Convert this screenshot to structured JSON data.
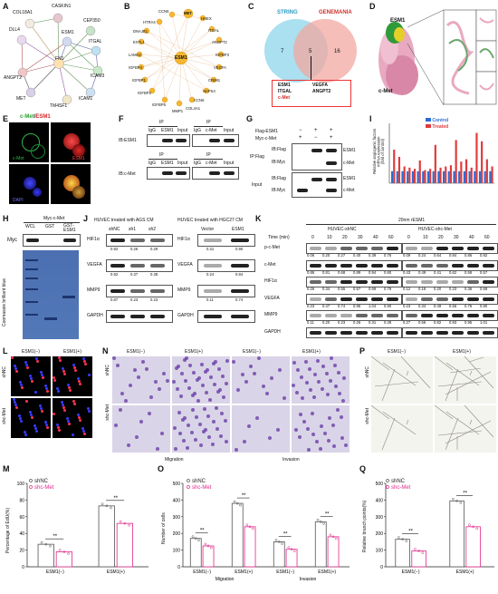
{
  "panels": {
    "A": {
      "label": "A",
      "nodes": [
        "CASKIN1",
        "COL18A1",
        "CEP350",
        "DLL4",
        "ESM1",
        "FN1",
        "ITGAL",
        "ANGPT2",
        "ICAM3",
        "MET",
        "TM4SF1",
        "ICAM1"
      ]
    },
    "B": {
      "label": "B",
      "center": "ESM1",
      "nodes": [
        "CCN5",
        "MET",
        "HHEX",
        "HTRA4",
        "ITGAL",
        "DNAJB1",
        "ANGPT2",
        "IGFBP3",
        "EXTL1",
        "LAMA4",
        "VEGFA",
        "IGFBP4",
        "CRIM1",
        "IGFBP1",
        "NAPSA",
        "IGFBP2",
        "CCN6",
        "IGFBP5",
        "COL4A1",
        "MMP1"
      ]
    },
    "C": {
      "label": "C",
      "left_title": "STRING",
      "right_title": "GENEMANIA",
      "left_count": "7",
      "overlap_count": "5",
      "right_count": "16",
      "box_left": [
        "ESM1",
        "ITGAL",
        "c-Met"
      ],
      "box_right": [
        "VEGFA",
        "ANGPT2"
      ]
    },
    "D": {
      "label": "D",
      "esm1": "ESM1",
      "cmet": "c-Met"
    },
    "E": {
      "label": "E",
      "title_a": "c-Met",
      "title_sep": "/",
      "title_b": "ESM1",
      "cmet": "c-Met",
      "esm1": "ESM1",
      "dapi": "DAPI"
    },
    "F": {
      "label": "F",
      "ip": "IP",
      "ip_esm1": [
        "IgG",
        "ESM1",
        "Input"
      ],
      "ip_cmet": [
        "IgG",
        "c-Met",
        "Input"
      ],
      "ib_esm1": "IB:ESM1",
      "ib_cmet": "IB:c-Met"
    },
    "G": {
      "label": "G",
      "flag": "Flag-ESM1",
      "myc": "Myc-c-Met",
      "flag_signs": [
        "−",
        "+",
        "+"
      ],
      "myc_signs": [
        "+",
        "−",
        "+"
      ],
      "ip_flag": "IP:Flag",
      "input": "Input",
      "ib_flag": "IB:Flag",
      "ib_myc": "IB:Myc",
      "bands": [
        "ESM1",
        "c-Met",
        "ESM1",
        "c-Met"
      ]
    },
    "H": {
      "label": "H",
      "header": "Myc-c-Met",
      "cols": [
        "WCL",
        "GST",
        "GST-\nESM1"
      ],
      "myc": "Myc",
      "stain": "Coomassie brilliant blue"
    },
    "I": {
      "label": "I",
      "ylabel": "Relative angiogenic factors\nmRNA expression\n(fold of control)",
      "legend": [
        "Control",
        "Treated"
      ],
      "colors": [
        "#2b6cd4",
        "#e03a3a"
      ]
    },
    "J": {
      "label": "J",
      "title_ags": "HUVEC treated with AGS CM",
      "title_hgc": "HUVEC treated with HGC27 CM",
      "ags_cols": [
        "shNC",
        "sh1",
        "sh2"
      ],
      "hgc_cols": [
        "Vector",
        "ESM1"
      ],
      "rows": [
        "HIF1α",
        "VEGFA",
        "MMP9",
        "GAPDH"
      ],
      "ags_vals": [
        [
          "0.92",
          "0.26",
          "0.29"
        ],
        [
          "0.92",
          "0.37",
          "0.38"
        ],
        [
          "0.87",
          "0.23",
          "0.23"
        ]
      ],
      "hgc_vals": [
        [
          "0.31",
          "0.90"
        ],
        [
          "0.24",
          "0.84"
        ],
        [
          "0.11",
          "0.74"
        ]
      ]
    },
    "K": {
      "label": "K",
      "top": "20nm rESM1",
      "group_a": "HUVEC-shNC",
      "group_b": "HUVEC-shc-Met",
      "time_label": "Time (min)",
      "times": [
        "0",
        "10",
        "20",
        "30",
        "40",
        "60"
      ],
      "rows": [
        "p-c-Met",
        "c-Met",
        "HIF1α",
        "VEGFA",
        "MMP9",
        "GAPDH"
      ],
      "vals_a": [
        [
          "0.06",
          "0.20",
          "0.27",
          "0.40",
          "0.39",
          "0.76"
        ],
        [
          "0.86",
          "0.81",
          "0.68",
          "0.89",
          "0.94",
          "0.80"
        ],
        [
          "0.26",
          "0.34",
          "0.55",
          "0.57",
          "0.69",
          "0.79"
        ],
        [
          "0.23",
          "0.47",
          "0.74",
          "0.95",
          "1.04",
          "0.90"
        ],
        [
          "0.11",
          "0.20",
          "0.23",
          "0.26",
          "0.31",
          "0.39"
        ]
      ],
      "vals_b": [
        [
          "0.09",
          "0.24",
          "0.64",
          "0.84",
          "0.86",
          "0.92"
        ],
        [
          "0.43",
          "0.49",
          "0.41",
          "0.62",
          "0.58",
          "0.57"
        ],
        [
          "0.12",
          "0.16",
          "0.20",
          "0.23",
          "0.36",
          "0.69"
        ],
        [
          "0.23",
          "0.34",
          "0.49",
          "0.56",
          "0.76",
          "0.80"
        ],
        [
          "0.27",
          "0.56",
          "0.82",
          "0.93",
          "0.95",
          "1.01"
        ]
      ]
    },
    "L": {
      "label": "L",
      "cols": [
        "ESM1(−)",
        "ESM1(+)"
      ],
      "rows": [
        "shNC",
        "shc-Met"
      ]
    },
    "N": {
      "label": "N",
      "cols": [
        "ESM1(−)",
        "ESM1(+)",
        "ESM1(−)",
        "ESM1(+)"
      ],
      "rows": [
        "shNC",
        "shc-Met"
      ],
      "groups": [
        "Migration",
        "Invasion"
      ]
    },
    "P": {
      "label": "P",
      "cols": [
        "ESM1(−)",
        "ESM1(+)"
      ],
      "rows": [
        "shNC",
        "shc-Met"
      ]
    },
    "M": {
      "label": "M",
      "ylabel": "Percentage of EdU(%)",
      "legend": [
        "shNC",
        "shc-Met"
      ],
      "x": [
        "ESM1(−)",
        "ESM1(+)"
      ],
      "yticks": [
        "0",
        "20",
        "40",
        "60",
        "80",
        "100"
      ],
      "sig": "**"
    },
    "O": {
      "label": "O",
      "ylabel": "Number of cells",
      "legend": [
        "shNC",
        "shc-Met"
      ],
      "x": [
        "ESM1(−)",
        "ESM1(+)",
        "ESM1(−)",
        "ESM1(+)"
      ],
      "groups": [
        "Migration",
        "Invasion"
      ],
      "yticks": [
        "0",
        "100",
        "200",
        "300",
        "400",
        "500"
      ],
      "sig": "**"
    },
    "Q": {
      "label": "Q",
      "ylabel": "Relative branch points(%)",
      "legend": [
        "shNC",
        "shc-Met"
      ],
      "x": [
        "ESM1(−)",
        "ESM1(+)"
      ],
      "yticks": [
        "0",
        "100",
        "200",
        "300",
        "400",
        "500"
      ],
      "sig": "**"
    }
  },
  "chart_data": [
    {
      "type": "bar",
      "panel": "I",
      "ylabel": "Relative angiogenic factors mRNA expression (fold of control)",
      "series": [
        {
          "name": "Control",
          "values": [
            1,
            1,
            1,
            1,
            1,
            1,
            1,
            1,
            1,
            1,
            1,
            1,
            1,
            1,
            1,
            1,
            1,
            1,
            1,
            1
          ]
        },
        {
          "name": "Treated",
          "values": [
            2.8,
            2.2,
            1.4,
            1.3,
            1.2,
            1.9,
            1.1,
            1.2,
            3.2,
            1.3,
            1.4,
            1.5,
            3.6,
            1.8,
            2.0,
            1.3,
            4.2,
            3.5,
            2.0,
            1.4
          ]
        }
      ],
      "ylim": [
        0,
        5
      ],
      "colors": [
        "#2b6cd4",
        "#e03a3a"
      ]
    },
    {
      "type": "bar",
      "panel": "M",
      "categories": [
        "ESM1(−)",
        "ESM1(+)"
      ],
      "ylabel": "Percentage of EdU(%)",
      "ylim": [
        0,
        100
      ],
      "series": [
        {
          "name": "shNC",
          "values": [
            27,
            73
          ]
        },
        {
          "name": "shc-Met",
          "values": [
            18,
            52
          ]
        }
      ]
    },
    {
      "type": "bar",
      "panel": "O",
      "categories": [
        "ESM1(−)",
        "ESM1(+)",
        "ESM1(−)",
        "ESM1(+)"
      ],
      "ylabel": "Number of cells",
      "ylim": [
        0,
        500
      ],
      "series": [
        {
          "name": "shNC",
          "values": [
            170,
            380,
            150,
            270
          ]
        },
        {
          "name": "shc-Met",
          "values": [
            125,
            240,
            105,
            180
          ]
        }
      ]
    },
    {
      "type": "bar",
      "panel": "Q",
      "categories": [
        "ESM1(−)",
        "ESM1(+)"
      ],
      "ylabel": "Relative branch points(%)",
      "ylim": [
        0,
        500
      ],
      "series": [
        {
          "name": "shNC",
          "values": [
            165,
            395
          ]
        },
        {
          "name": "shc-Met",
          "values": [
            95,
            240
          ]
        }
      ]
    }
  ]
}
